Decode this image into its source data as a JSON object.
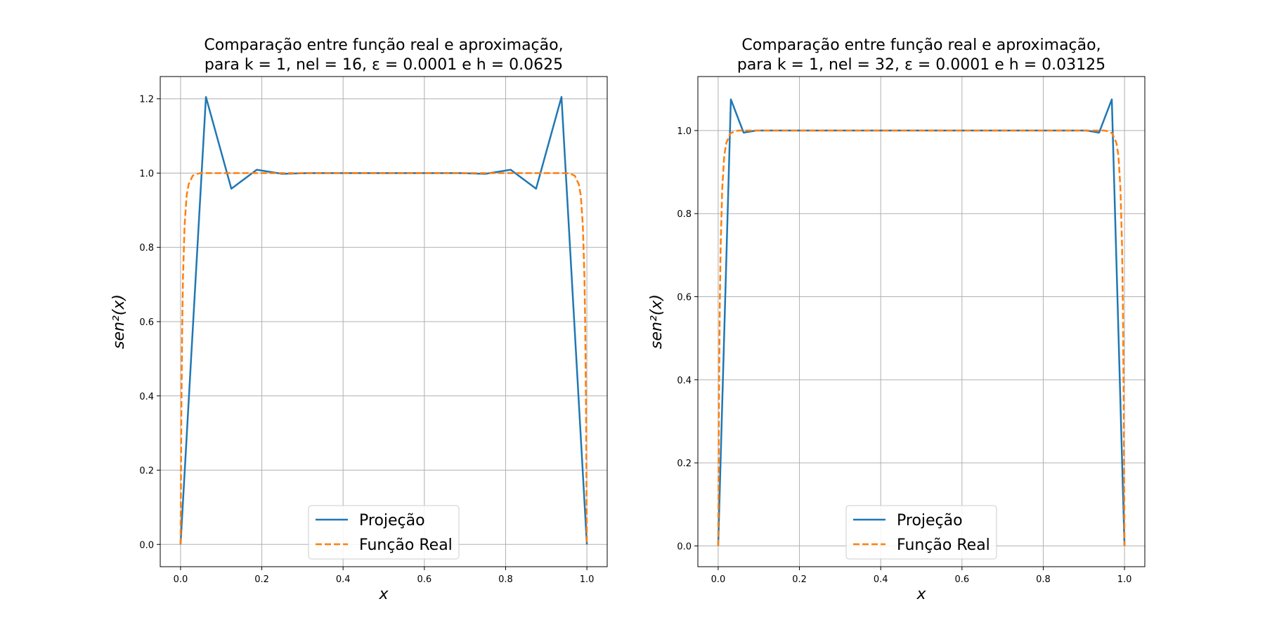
{
  "chart_data": [
    {
      "type": "line",
      "title": [
        "Comparação entre função real e aproximação,",
        "para k = 1, nel = 16, ε = 0.0001 e h = 0.0625"
      ],
      "xlabel": "x",
      "ylabel": "sen²(x)",
      "xlim": [
        -0.05,
        1.05
      ],
      "ylim": [
        -0.06,
        1.26
      ],
      "xticks": [
        "0.0",
        "0.2",
        "0.4",
        "0.6",
        "0.8",
        "1.0"
      ],
      "yticks": [
        "0.0",
        "0.2",
        "0.4",
        "0.6",
        "0.8",
        "1.0",
        "1.2"
      ],
      "grid": true,
      "legend_position": "lower center",
      "series": [
        {
          "name": "Projeção",
          "style": "solid",
          "color": "#1f77b4",
          "x": [
            0.0,
            0.0625,
            0.125,
            0.1875,
            0.25,
            0.3125,
            0.375,
            0.4375,
            0.5,
            0.5625,
            0.625,
            0.6875,
            0.75,
            0.8125,
            0.875,
            0.9375,
            1.0
          ],
          "y": [
            0.0,
            1.205,
            0.958,
            1.009,
            0.998,
            1.0,
            1.0,
            1.0,
            1.0,
            1.0,
            1.0,
            1.0,
            0.998,
            1.009,
            0.958,
            1.205,
            0.0
          ]
        },
        {
          "name": "Função Real",
          "style": "dashed",
          "color": "#ff7f0e",
          "x": [
            0.0,
            0.002,
            0.004,
            0.006,
            0.01,
            0.015,
            0.02,
            0.03,
            0.04,
            0.05,
            0.07,
            0.1,
            0.3,
            0.5,
            0.7,
            0.9,
            0.93,
            0.95,
            0.96,
            0.97,
            0.98,
            0.985,
            0.99,
            0.994,
            0.996,
            0.998,
            1.0
          ],
          "y": [
            0.0,
            0.35,
            0.58,
            0.72,
            0.86,
            0.94,
            0.97,
            0.993,
            0.998,
            1.0,
            1.0,
            1.0,
            1.0,
            1.0,
            1.0,
            1.0,
            1.0,
            1.0,
            0.998,
            0.993,
            0.97,
            0.94,
            0.86,
            0.72,
            0.58,
            0.35,
            0.0
          ]
        }
      ]
    },
    {
      "type": "line",
      "title": [
        "Comparação entre função real e aproximação,",
        "para k = 1, nel = 32, ε = 0.0001 e h = 0.03125"
      ],
      "xlabel": "x",
      "ylabel": "sen²(x)",
      "xlim": [
        -0.05,
        1.05
      ],
      "ylim": [
        -0.05,
        1.13
      ],
      "xticks": [
        "0.0",
        "0.2",
        "0.4",
        "0.6",
        "0.8",
        "1.0"
      ],
      "yticks": [
        "0.0",
        "0.2",
        "0.4",
        "0.6",
        "0.8",
        "1.0"
      ],
      "grid": true,
      "legend_position": "lower center",
      "series": [
        {
          "name": "Projeção",
          "style": "solid",
          "color": "#1f77b4",
          "x": [
            0.0,
            0.03125,
            0.0625,
            0.09375,
            0.125,
            0.5,
            0.875,
            0.90625,
            0.9375,
            0.96875,
            1.0
          ],
          "y": [
            0.0,
            1.075,
            0.995,
            1.0,
            1.0,
            1.0,
            1.0,
            1.0,
            0.995,
            1.075,
            0.0
          ]
        },
        {
          "name": "Função Real",
          "style": "dashed",
          "color": "#ff7f0e",
          "x": [
            0.0,
            0.002,
            0.004,
            0.006,
            0.01,
            0.015,
            0.02,
            0.03,
            0.04,
            0.05,
            0.07,
            0.1,
            0.3,
            0.5,
            0.7,
            0.9,
            0.93,
            0.95,
            0.96,
            0.97,
            0.98,
            0.985,
            0.99,
            0.994,
            0.996,
            0.998,
            1.0
          ],
          "y": [
            0.0,
            0.35,
            0.58,
            0.72,
            0.86,
            0.94,
            0.97,
            0.993,
            0.998,
            1.0,
            1.0,
            1.0,
            1.0,
            1.0,
            1.0,
            1.0,
            1.0,
            1.0,
            0.998,
            0.993,
            0.97,
            0.94,
            0.86,
            0.72,
            0.58,
            0.35,
            0.0
          ]
        }
      ]
    }
  ]
}
